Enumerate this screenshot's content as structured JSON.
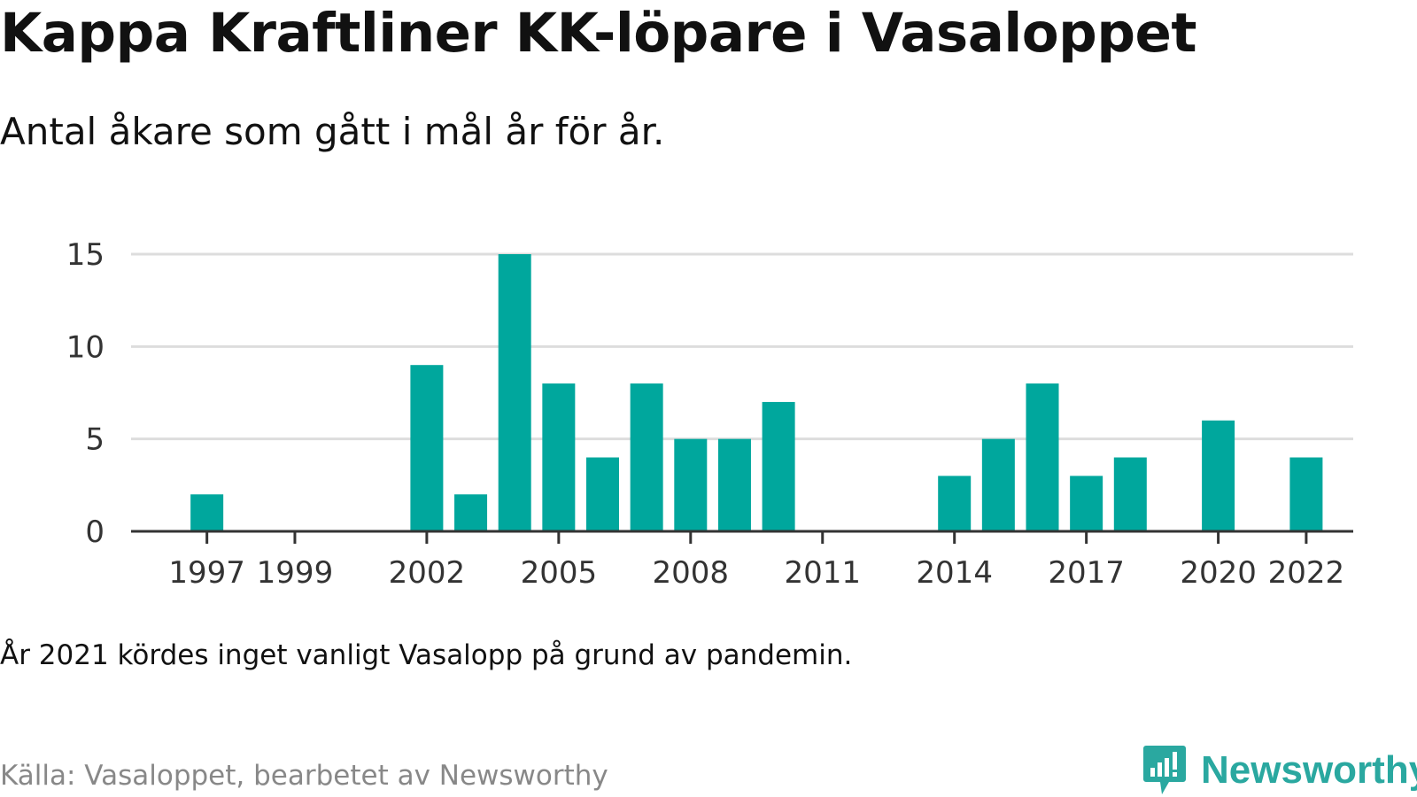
{
  "header": {
    "title": "Kappa Kraftliner KK-löpare i Vasaloppet",
    "subtitle": "Antal åkare som gått i mål år för år."
  },
  "footer": {
    "note": "År 2021 kördes inget vanligt Vasalopp på grund av pandemin.",
    "source": "Källa: Vasaloppet, bearbetet av Newsworthy",
    "brand": "Newsworthy"
  },
  "colors": {
    "bar": "#00a79d",
    "grid": "#dddddd",
    "axis": "#333333",
    "brand": "#2aa8a0"
  },
  "icons": {
    "brand_logo": "bar-chart-speech-bubble-icon"
  },
  "chart_data": {
    "type": "bar",
    "title": "Kappa Kraftliner KK-löpare i Vasaloppet",
    "subtitle": "Antal åkare som gått i mål år för år.",
    "xlabel": "",
    "ylabel": "",
    "x": [
      1996,
      1997,
      1998,
      1999,
      2000,
      2001,
      2002,
      2003,
      2004,
      2005,
      2006,
      2007,
      2008,
      2009,
      2010,
      2011,
      2012,
      2013,
      2014,
      2015,
      2016,
      2017,
      2018,
      2019,
      2020,
      2021,
      2022,
      2023
    ],
    "values": [
      0,
      2,
      0,
      0,
      0,
      0,
      9,
      2,
      15,
      8,
      4,
      8,
      5,
      5,
      7,
      0,
      0,
      0,
      3,
      5,
      8,
      3,
      4,
      0,
      6,
      0,
      4,
      0
    ],
    "xticks": [
      1997,
      1999,
      2002,
      2005,
      2008,
      2011,
      2014,
      2017,
      2020,
      2022
    ],
    "yticks": [
      0,
      5,
      10,
      15
    ],
    "ylim": [
      0,
      15
    ],
    "grid": true,
    "legend": "none"
  }
}
